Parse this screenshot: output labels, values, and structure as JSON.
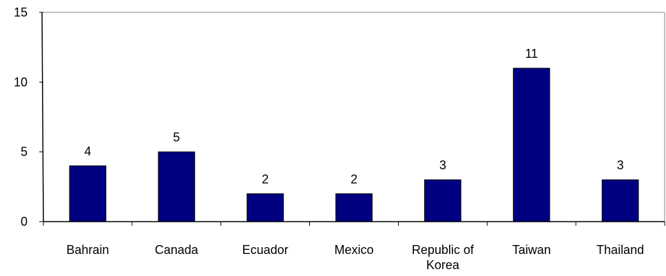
{
  "chart_data": {
    "type": "bar",
    "categories": [
      "Bahrain",
      "Canada",
      "Ecuador",
      "Mexico",
      "Republic of Korea",
      "Taiwan",
      "Thailand"
    ],
    "category_lines": [
      [
        "Bahrain"
      ],
      [
        "Canada"
      ],
      [
        "Ecuador"
      ],
      [
        "Mexico"
      ],
      [
        "Republic of",
        "Korea"
      ],
      [
        "Taiwan"
      ],
      [
        "Thailand"
      ]
    ],
    "values": [
      4,
      5,
      2,
      2,
      3,
      11,
      3
    ],
    "data_labels": [
      "4",
      "5",
      "2",
      "2",
      "3",
      "11",
      "3"
    ],
    "yticks": [
      0,
      5,
      10,
      15
    ],
    "ylim": [
      0,
      15
    ],
    "title": "",
    "xlabel": "",
    "ylabel": "",
    "grid": false,
    "legend": "none",
    "colors": {
      "bar_fill": "#000080",
      "bar_stroke": "#000000",
      "axis": "#000000",
      "frame": "#808080"
    }
  }
}
